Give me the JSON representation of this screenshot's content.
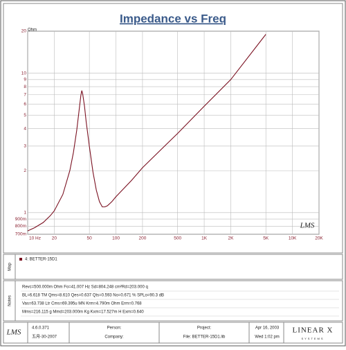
{
  "chart_data": {
    "type": "line",
    "title": "Impedance vs Freq",
    "y_label": "Ohm",
    "log_x": true,
    "log_y": true,
    "grid": true,
    "x": [
      10,
      12,
      15,
      18,
      20,
      25,
      30,
      33,
      36,
      38,
      40,
      41,
      42,
      44,
      46,
      50,
      55,
      60,
      65,
      70,
      75,
      80,
      90,
      100,
      150,
      200,
      300,
      500,
      1000,
      2000,
      5000
    ],
    "series": [
      {
        "name": "4: BETTER-15D1",
        "color": "#7a1020",
        "values": [
          0.74,
          0.78,
          0.85,
          0.95,
          1.03,
          1.35,
          2.0,
          2.7,
          3.9,
          5.2,
          6.9,
          7.5,
          7.1,
          5.8,
          4.5,
          3.0,
          1.95,
          1.45,
          1.2,
          1.1,
          1.1,
          1.12,
          1.2,
          1.3,
          1.7,
          2.1,
          2.7,
          3.7,
          5.8,
          9.0,
          19
        ]
      }
    ],
    "xlim": [
      10,
      20000
    ],
    "ylim": [
      0.7,
      20
    ],
    "xticks": [
      {
        "value": 10,
        "label": "10 Hz"
      },
      20,
      50,
      100,
      200,
      500,
      {
        "value": 1000,
        "label": "1K"
      },
      {
        "value": 2000,
        "label": "2K"
      },
      {
        "value": 5000,
        "label": "5K"
      },
      {
        "value": 10000,
        "label": "10K"
      },
      {
        "value": 20000,
        "label": "20K"
      }
    ],
    "yticks": [
      20,
      10,
      9,
      8,
      7,
      6,
      5,
      4,
      3,
      2,
      1,
      {
        "value": 0.9,
        "label": "900m"
      },
      {
        "value": 0.8,
        "label": "800m"
      },
      {
        "value": 0.7,
        "label": "700m"
      }
    ],
    "watermark": "LMS"
  },
  "map": {
    "label": "Map"
  },
  "notes": {
    "label": "Notes",
    "lines": [
      "Revc=500.000m Ohm  Fo=41.007 Hz  Sd=804.248 cm²Rd=203.000 q",
      "BL=6.618 TM  Qms=8.610  Qes=0.637  Qts=0.593  No=0.671 %  SPLo=90.3 dB",
      "Vas=63.738 Ltr  Cms=69.395u MN  Krm=4.790m Ohm  Erm=0.768",
      "Mms=216.115 g  Mmd=203.000m Kg  Kxm=17.527m H  Exm=0.640"
    ]
  },
  "footer": {
    "logo": "LMS",
    "version": "4.6.0.371",
    "build_date": "五月-30-2007",
    "person": "Person:",
    "company": "Company:",
    "project": "Project:",
    "file": "File: BETTER-15D1.lib",
    "date": "Apr 16, 2003",
    "time": "Wed  1:02 pm",
    "brand": "LINEAR X",
    "brand_sub": "SYSTEMS"
  }
}
